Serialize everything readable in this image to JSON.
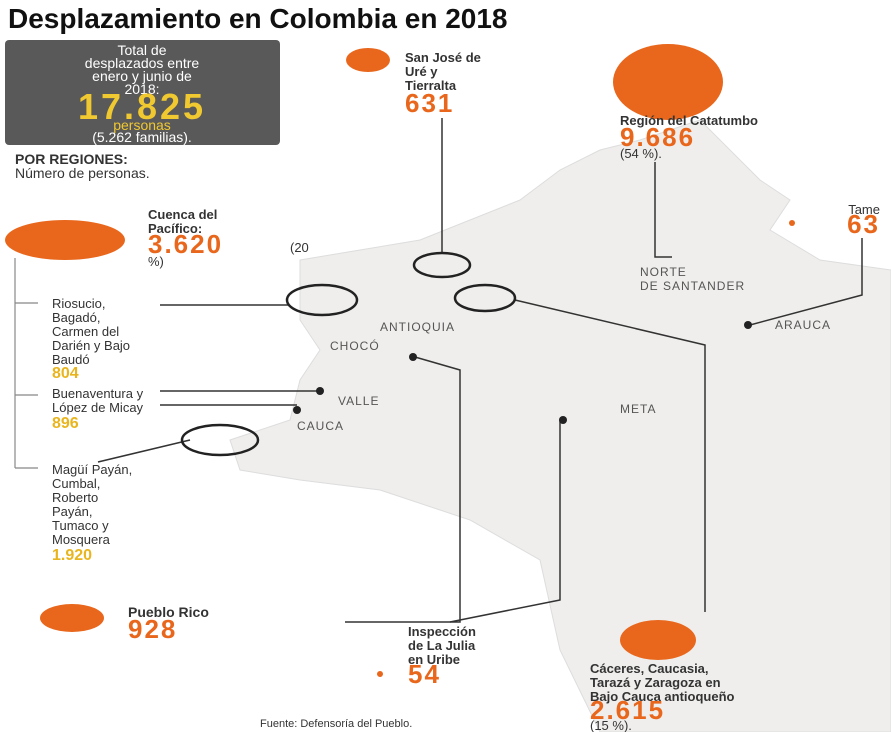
{
  "title": "Desplazamiento en Colombia en 2018",
  "summary": {
    "lines": [
      "Total de",
      "desplazados entre",
      "enero y junio de",
      "2018:"
    ],
    "total": "17.825",
    "unit": "personas",
    "families": "(5.262 familias)."
  },
  "regions_header": {
    "title": "POR REGIONES:",
    "subtitle": "Número de personas."
  },
  "regions": [
    {
      "lines": [
        "San José de",
        "Uré y",
        "Tierralta"
      ],
      "value": "631"
    },
    {
      "lines": [
        "Región del Catatumbo"
      ],
      "value": "9.686",
      "share": "(54 %)."
    },
    {
      "lines": [
        "Tame"
      ],
      "value": "63"
    },
    {
      "lines": [
        "Cuenca del",
        "Pacífico:"
      ],
      "value": "3.620",
      "share": [
        "(20",
        "%)"
      ]
    },
    {
      "lines": [
        "Pueblo Rico"
      ],
      "value": "928"
    },
    {
      "lines": [
        "Inspección",
        "de La Julia",
        "en Uribe"
      ],
      "value": "54"
    },
    {
      "lines": [
        "Cáceres, Caucasia,",
        "Tarazá y Zaragoza en",
        "Bajo Cauca antioqueño"
      ],
      "value": "2.615",
      "share": "(15 %)."
    }
  ],
  "sub_areas": [
    {
      "lines": [
        "Riosucio,",
        "Bagadó,",
        "Carmen del",
        "Darién y Bajo",
        "Baudó"
      ],
      "value": "804"
    },
    {
      "lines": [
        "Buenaventura y",
        "López de Micay"
      ],
      "value": "896"
    },
    {
      "lines": [
        "Magüí Payán,",
        "Cumbal,",
        "Roberto",
        "Payán,",
        "Tumaco y",
        "Mosquera"
      ],
      "value": "1.920"
    }
  ],
  "map_labels": [
    "NORTE",
    "DE SANTANDER",
    "ARAUCA",
    "ANTIOQUIA",
    "CHOCÓ",
    "VALLE",
    "CAUCA",
    "META"
  ],
  "source": "Fuente: Defensoría del Pueblo."
}
